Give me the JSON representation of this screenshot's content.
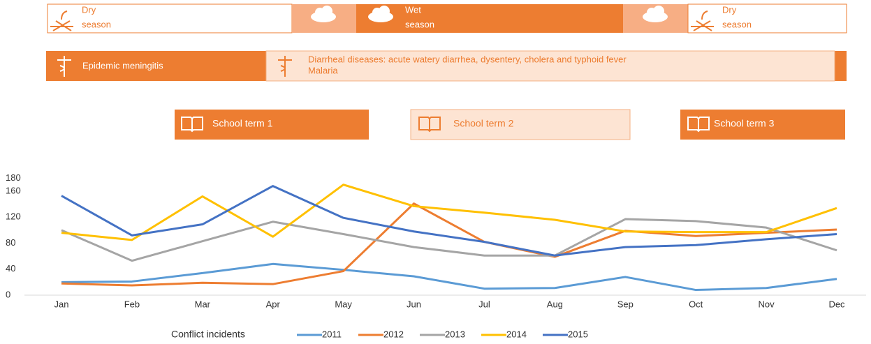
{
  "header": {
    "seasons": [
      {
        "title": "Dry",
        "sub": "season"
      },
      {
        "title": "Wet",
        "sub": "season"
      },
      {
        "title": "Dry",
        "sub": "season"
      }
    ],
    "diseases": {
      "first": "Epidemic meningitis",
      "second": [
        "Diarrheal diseases: acute watery diarrhea, dysentery, cholera and typhoid fever",
        "Malaria"
      ]
    },
    "school_terms": [
      "School term 1",
      "School term 2",
      "School term 3"
    ]
  },
  "chart_data": {
    "type": "line",
    "legend_title": "Conflict incidents",
    "categories": [
      "Jan",
      "Feb",
      "Mar",
      "Apr",
      "May",
      "Jun",
      "Jul",
      "Aug",
      "Sep",
      "Oct",
      "Nov",
      "Dec"
    ],
    "ylim": [
      0,
      180
    ],
    "yticks": [
      0,
      40,
      80,
      120,
      160,
      180
    ],
    "grid": false,
    "legend": "bottom",
    "series": [
      {
        "name": "2011",
        "color": "#5b9bd5",
        "values": [
          20,
          21,
          34,
          48,
          39,
          29,
          10,
          11,
          28,
          8,
          11,
          25
        ]
      },
      {
        "name": "2012",
        "color": "#ed7d31",
        "values": [
          18,
          15,
          19,
          17,
          37,
          141,
          82,
          59,
          99,
          91,
          96,
          101
        ]
      },
      {
        "name": "2013",
        "color": "#a5a5a5",
        "values": [
          100,
          53,
          83,
          113,
          94,
          74,
          61,
          61,
          117,
          114,
          104,
          69
        ]
      },
      {
        "name": "2014",
        "color": "#ffc000",
        "values": [
          96,
          85,
          152,
          90,
          170,
          137,
          127,
          116,
          98,
          97,
          97,
          134
        ]
      },
      {
        "name": "2015",
        "color": "#4472c4",
        "values": [
          153,
          92,
          109,
          168,
          119,
          98,
          82,
          61,
          74,
          77,
          86,
          94
        ]
      }
    ]
  }
}
